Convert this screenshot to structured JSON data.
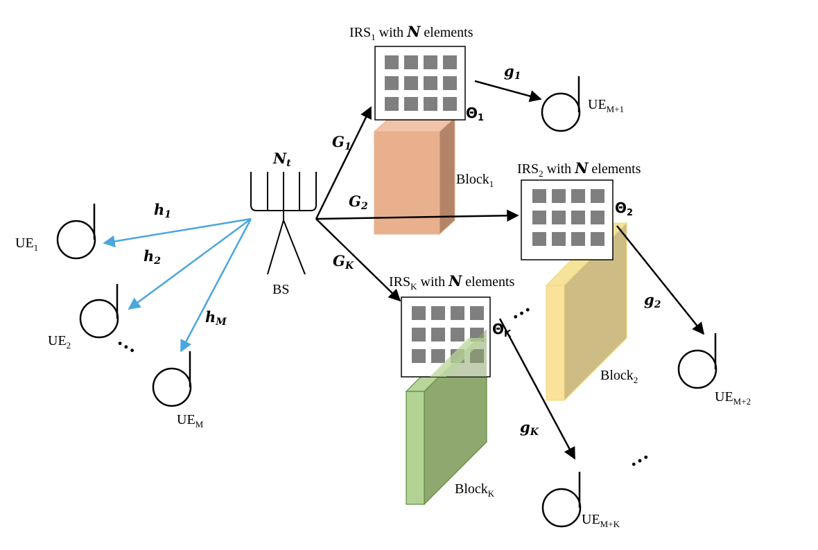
{
  "bs": {
    "label": "BS",
    "antenna_sym": "N",
    "antenna_sub": "t"
  },
  "irs": [
    {
      "name": "IRS",
      "sub": "1",
      "with": " with ",
      "n": "N",
      "rest": " elements",
      "theta": "Θ",
      "theta_sub": "1"
    },
    {
      "name": "IRS",
      "sub": "2",
      "with": " with ",
      "n": "N",
      "rest": " elements",
      "theta": "Θ",
      "theta_sub": "2"
    },
    {
      "name": "IRS",
      "sub": "K",
      "with": " with ",
      "n": "N",
      "rest": " elements",
      "theta": "Θ",
      "theta_sub": "K"
    }
  ],
  "blocks": [
    {
      "name": "Block",
      "sub": "1",
      "color": "#e9b08e"
    },
    {
      "name": "Block",
      "sub": "2",
      "color": "#e2d58a"
    },
    {
      "name": "Block",
      "sub": "K",
      "color": "#96b27a"
    }
  ],
  "channels": {
    "G1": {
      "sym": "G",
      "sub": "1"
    },
    "G2": {
      "sym": "G",
      "sub": "2"
    },
    "GK": {
      "sym": "G",
      "sub": "K"
    },
    "g1": {
      "sym": "g",
      "sub": "1"
    },
    "g2": {
      "sym": "g",
      "sub": "2"
    },
    "gK": {
      "sym": "g",
      "sub": "K"
    },
    "h1": {
      "sym": "h",
      "sub": "1"
    },
    "h2": {
      "sym": "h",
      "sub": "2"
    },
    "hM": {
      "sym": "h",
      "sub": "M"
    }
  },
  "ues": {
    "ue1": {
      "name": "UE",
      "sub": "1"
    },
    "ue2": {
      "name": "UE",
      "sub": "2"
    },
    "ueM": {
      "name": "UE",
      "sub": "M"
    },
    "ueM1": {
      "name": "UE",
      "sub": "M+1"
    },
    "ueM2": {
      "name": "UE",
      "sub": "M+2"
    },
    "ueMK": {
      "name": "UE",
      "sub": "M+K"
    }
  },
  "ellipsis": "…",
  "colors": {
    "direct_link": "#4aa6dd",
    "irs_link": "#000000",
    "irs_element": "#7f7f7f"
  }
}
